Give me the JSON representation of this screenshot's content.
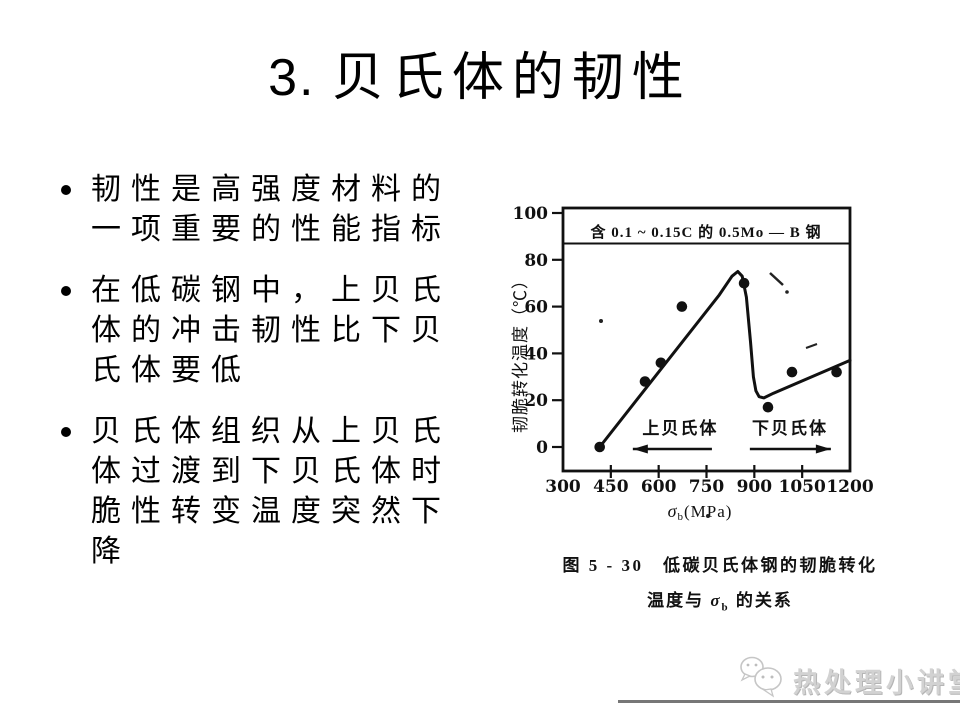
{
  "slide": {
    "title_prefix": "3. ",
    "title_text": "贝氏体的韧性",
    "bullets": [
      "韧性是高强度材料的\n一项重要的性能指标",
      "在低碳钢中，上贝氏\n体的冲击韧性比下贝\n氏体要低",
      "贝氏体组织从上贝氏\n体过渡到下贝氏体时\n脆性转变温度突然下\n降"
    ]
  },
  "figure": {
    "caption_line1": "图 5 - 30　低碳贝氏体钢的韧脆转化",
    "caption_line2_pre": "温度与 ",
    "caption_sigma": "σ",
    "caption_sigma_sub": "b",
    "caption_line2_post": " 的关系"
  },
  "watermark": {
    "text": "热处理小讲堂",
    "icon": "wechat-chat-bubbles-icon"
  },
  "chart_data": {
    "type": "scatter",
    "title_annotation": "含 0.1 ~ 0.15C 的 0.5Mo — B 钢",
    "ylabel": "韧脆转化温度（℃）",
    "xlabel_sigma": "σ",
    "xlabel_sigma_sub": "b",
    "xlabel_unit": "(MPa)",
    "xlim": [
      300,
      1200
    ],
    "ylim": [
      -10,
      102
    ],
    "x_ticks": [
      300,
      450,
      600,
      750,
      900,
      1050,
      1200
    ],
    "y_ticks": [
      0,
      20,
      40,
      60,
      80,
      100
    ],
    "grid": false,
    "points": [
      [
        415,
        0
      ],
      [
        557,
        28
      ],
      [
        607,
        36
      ],
      [
        673,
        60
      ],
      [
        868,
        70
      ],
      [
        943,
        17
      ],
      [
        1018,
        32
      ],
      [
        1158,
        32
      ]
    ],
    "curve": [
      [
        415,
        0
      ],
      [
        790,
        65
      ],
      [
        830,
        73
      ],
      [
        848,
        75
      ],
      [
        862,
        73
      ],
      [
        875,
        64
      ],
      [
        888,
        45
      ],
      [
        897,
        30
      ],
      [
        905,
        24
      ],
      [
        915,
        21.5
      ],
      [
        930,
        21
      ],
      [
        960,
        23
      ],
      [
        1200,
        37
      ]
    ],
    "region_labels": [
      {
        "label": "上贝氏体",
        "x": 668,
        "arrow": "left",
        "arrow_x1": 519,
        "arrow_x2": 767
      },
      {
        "label": "下贝氏体",
        "x": 1012,
        "arrow": "right",
        "arrow_x1": 886,
        "arrow_x2": 1140
      }
    ]
  }
}
